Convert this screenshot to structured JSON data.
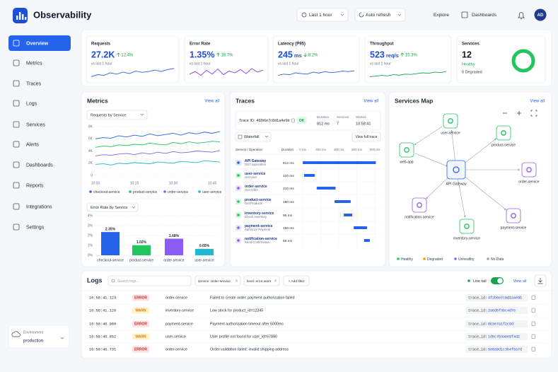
{
  "header": {
    "app_name": "Observability",
    "time_range": "Last 1 hour",
    "auto_refresh": "Auto refresh",
    "links": [
      "Explore",
      "Dashboards"
    ],
    "avatar": "AD"
  },
  "sidebar": {
    "nav": [
      "Overview",
      "Metrics",
      "Traces",
      "Logs",
      "Services",
      "Alerts",
      "Dashboards",
      "Reports",
      "Integrations",
      "Settings"
    ],
    "environment_label": "Environment",
    "environment": "production"
  },
  "kpis": [
    {
      "title": "Requests",
      "value": "27.2K",
      "unit": null,
      "change": "12.4%",
      "direction": "up",
      "compare": "vs last 1 hour",
      "spark_color": "#2563eb",
      "spark_lim": [
        30,
        80
      ],
      "spark": [
        40,
        48,
        45,
        55,
        50,
        58,
        52,
        62,
        57,
        60,
        66,
        60,
        68,
        72
      ]
    },
    {
      "title": "Error Rate",
      "value": "1.35%",
      "unit": null,
      "change": "18.7%",
      "direction": "up",
      "compare": "vs last 1 hour",
      "spark_color": "#7c3aed",
      "spark_lim": [
        30,
        80
      ],
      "spark": [
        50,
        60,
        45,
        65,
        50,
        70,
        48,
        62,
        55,
        68,
        52,
        72,
        58,
        66
      ]
    },
    {
      "title": "Latency (P95)",
      "value": "245",
      "unit": "ms",
      "change": "8.2%",
      "direction": "down",
      "compare": "vs last 1 hour",
      "spark_color": "#2563eb",
      "spark_lim": [
        30,
        80
      ],
      "spark": [
        45,
        50,
        48,
        55,
        52,
        50,
        58,
        54,
        60,
        56,
        58,
        62,
        60,
        63
      ]
    },
    {
      "title": "Throughput",
      "value": "523",
      "unit": "req/s",
      "change": "15.3%",
      "direction": "up",
      "compare": "vs last 1 hour",
      "spark_color": "#16a34a",
      "spark_lim": [
        30,
        80
      ],
      "spark": [
        40,
        42,
        45,
        43,
        48,
        46,
        50,
        49,
        52,
        55,
        53,
        58,
        56,
        60
      ]
    }
  ],
  "services_card": {
    "title": "Services",
    "value": "12",
    "status": "Healthy",
    "degraded": "0 Degraded",
    "health_pct": 100,
    "color": "#22c55e"
  },
  "metrics": {
    "title": "Metrics",
    "view_all": "View all",
    "line_chart": {
      "type": "line",
      "dropdown": "Requests by Service",
      "categories": [
        "10:00",
        null,
        null,
        null,
        null,
        "10:15",
        null,
        null,
        null,
        null,
        "10:30",
        null,
        null,
        null,
        null,
        "10:45",
        null
      ],
      "ylim": [
        0,
        8000
      ],
      "yticks": [
        0,
        {
          "value": 2000,
          "label": "2K"
        },
        {
          "value": 4000,
          "label": "4K"
        },
        {
          "value": 6000,
          "label": "6K"
        },
        {
          "value": 8000,
          "label": "8K"
        }
      ],
      "grid": true,
      "series": [
        {
          "name": "checkout-service",
          "color": "#2563eb",
          "values": [
            6000,
            6200,
            6100,
            6500,
            6300,
            6600,
            6400,
            6800,
            6500,
            6700,
            6900,
            6600,
            7000,
            6800,
            7100,
            6900,
            7200
          ]
        },
        {
          "name": "product-service",
          "color": "#22c55e",
          "values": [
            4600,
            4800,
            4700,
            5000,
            4900,
            5100,
            5000,
            5300,
            5100,
            5000,
            5400,
            5200,
            5500,
            5300,
            5400,
            5600,
            5500
          ]
        },
        {
          "name": "order-service",
          "color": "#8b5cf6",
          "values": [
            3200,
            3400,
            3300,
            3500,
            3600,
            3400,
            3700,
            3500,
            3800,
            3600,
            3900,
            3700,
            3800,
            4000,
            3900,
            3800,
            4100
          ]
        },
        {
          "name": "user-service",
          "color": "#22b8cf",
          "values": [
            1800,
            1900,
            1700,
            2000,
            1900,
            2100,
            2000,
            1900,
            2200,
            2100,
            2000,
            2300,
            2200,
            2100,
            2400,
            2300,
            2200
          ]
        }
      ]
    },
    "bar_chart": {
      "type": "bar",
      "dropdown": "Error Rate by Service",
      "categories": [
        "checkout-service",
        "product-service",
        "order-service",
        "user-service"
      ],
      "values": [
        2.35,
        1.02,
        1.68,
        0.65
      ],
      "value_labels": [
        "2.35%",
        "1.02%",
        "1.68%",
        "0.65%"
      ],
      "colors": [
        "#2563eb",
        "#22c55e",
        "#8b5cf6",
        "#22b8cf"
      ],
      "ylim": [
        0,
        4
      ],
      "yticks": [
        {
          "value": 0,
          "label": "0%"
        },
        {
          "value": 1,
          "label": "1%"
        },
        {
          "value": 2,
          "label": "2%"
        },
        {
          "value": 3,
          "label": "3%"
        },
        {
          "value": 4,
          "label": "4%"
        }
      ],
      "grid": true
    }
  },
  "traces": {
    "title": "Traces",
    "view_all": "View all",
    "trace_id_label": "Trace ID:",
    "trace_id": "4f2b6e7c8d1a4e9b",
    "status": "OK",
    "duration_label": "Duration",
    "duration": "812 ms",
    "services_label": "Services",
    "services": "7",
    "started_label": "Started",
    "started": "10:58:41",
    "view_dropdown": "Waterfall",
    "view_full": "View full trace",
    "col_service": "Service / Operation",
    "col_duration": "Duration",
    "xlim": [
      0,
      800
    ],
    "xticks": [
      {
        "value": 0,
        "label": "0 ms"
      },
      {
        "value": 200,
        "label": "200 ms"
      },
      {
        "value": 400,
        "label": "400 ms"
      },
      {
        "value": 600,
        "label": "600 ms"
      },
      {
        "value": 800,
        "label": "800 ms"
      }
    ],
    "bar_color": "#2563eb",
    "spans": [
      {
        "service": "API Gateway",
        "operation": "GET /api/orders",
        "start": 0,
        "duration": 812,
        "duration_label": "812 ms",
        "color": "#2563eb"
      },
      {
        "service": "user-service",
        "operation": "Get User",
        "start": 15,
        "duration": 120,
        "duration_label": "120 ms",
        "color": "#22c55e"
      },
      {
        "service": "order-service",
        "operation": "Get Order",
        "start": 155,
        "duration": 210,
        "duration_label": "210 ms",
        "color": "#8b5cf6"
      },
      {
        "service": "product-service",
        "operation": "Get Products",
        "start": 353,
        "duration": 180,
        "duration_label": "180 ms",
        "color": "#22c55e"
      },
      {
        "service": "inventory-service",
        "operation": "Check Inventory",
        "start": 455,
        "duration": 95,
        "duration_label": "95 ms",
        "color": "#22c55e"
      },
      {
        "service": "payment-service",
        "operation": "Authorize Payment",
        "start": 565,
        "duration": 150,
        "duration_label": "150 ms",
        "color": "#8b5cf6"
      },
      {
        "service": "notification-service",
        "operation": "Send Confirmation",
        "start": 680,
        "duration": 65,
        "duration_label": "65 ms",
        "color": "#8b5cf6"
      }
    ]
  },
  "services_map": {
    "title": "Services Map",
    "view_all": "View all",
    "nodes": [
      {
        "label": "user-service",
        "color": "#22c55e"
      },
      {
        "label": "product-service",
        "color": "#22c55e"
      },
      {
        "label": "web-app",
        "color": "#22c55e"
      },
      {
        "label": "API Gateway",
        "color": "#2563eb"
      },
      {
        "label": "order-service",
        "color": "#8b5cf6"
      },
      {
        "label": "notification-service",
        "color": "#8b5cf6"
      },
      {
        "label": "inventory-service",
        "color": "#22c55e"
      },
      {
        "label": "payment-service",
        "color": "#8b5cf6"
      }
    ],
    "legend": [
      {
        "label": "Healthy",
        "color": "#22c55e"
      },
      {
        "label": "Degraded",
        "color": "#f59e0b"
      },
      {
        "label": "Unhealthy",
        "color": "#8b5cf6"
      },
      {
        "label": "No Data",
        "color": "#9ca3af"
      }
    ]
  },
  "logs": {
    "title": "Logs",
    "search_placeholder": "Search logs...",
    "filters": [
      "service: order-service",
      "level: error,warn"
    ],
    "add_filter": "+ Add filter",
    "live_tail": "Live tail",
    "view_all": "View all",
    "trace_label": "trace_id:",
    "level_colors": {
      "ERROR": "#dc2626",
      "WARN": "#d97706"
    },
    "level_bg": {
      "ERROR": "#fee2e2",
      "WARN": "#fef3c7"
    },
    "rows": [
      {
        "time": "10:58:41.123",
        "level": "ERROR",
        "service": "order-service",
        "message": "Failed to create order: payment authorization failed",
        "trace_id": "4f2b6e7c8d1a4e9b"
      },
      {
        "time": "10:58:41.120",
        "level": "WARN",
        "service": "inventory-service",
        "message": "Low stock for product_id=12345",
        "trace_id": "2a6d5f3bc4d7e"
      },
      {
        "time": "10:58:40.980",
        "level": "ERROR",
        "service": "payment-service",
        "message": "Payment authorization timeout after 5000ms",
        "trace_id": "8b3e7a1f2c9d"
      },
      {
        "time": "10:58:40.852",
        "level": "WARN",
        "service": "user-service",
        "message": "User profile not found for user_id=67890",
        "trace_id": "1d5c7b3a6e9f4d2"
      },
      {
        "time": "10:58:40.731",
        "level": "ERROR",
        "service": "order-service",
        "message": "Order validation failed: invalid shipping address",
        "trace_id": "5e8a9d1c3b4f6a7d"
      }
    ]
  }
}
